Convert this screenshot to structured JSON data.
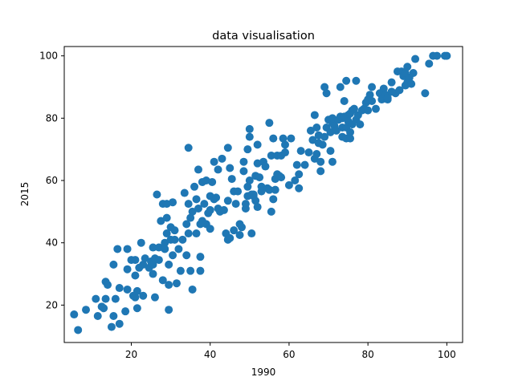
{
  "chart_data": {
    "type": "scatter",
    "title": "data visualisation",
    "xlabel": "1990",
    "ylabel": "2015",
    "xlim": [
      3,
      104
    ],
    "ylim": [
      8,
      103
    ],
    "xticks": [
      20,
      40,
      60,
      80,
      100
    ],
    "yticks": [
      20,
      40,
      60,
      80,
      100
    ],
    "grid": false,
    "marker_color": "#1f77b4",
    "points": [
      [
        5.5,
        17
      ],
      [
        6.5,
        12
      ],
      [
        8.5,
        18.5
      ],
      [
        11,
        22
      ],
      [
        11.5,
        16.5
      ],
      [
        12.5,
        19.5
      ],
      [
        13,
        19
      ],
      [
        13.5,
        22
      ],
      [
        13.5,
        27.5
      ],
      [
        14,
        26.5
      ],
      [
        15,
        13
      ],
      [
        15.5,
        16.5
      ],
      [
        15.5,
        33
      ],
      [
        16,
        22
      ],
      [
        16.5,
        38
      ],
      [
        17,
        14
      ],
      [
        17,
        25.5
      ],
      [
        18.5,
        18
      ],
      [
        19,
        25
      ],
      [
        19,
        31.5
      ],
      [
        19,
        38
      ],
      [
        20,
        34.5
      ],
      [
        20.5,
        23
      ],
      [
        21,
        22.5
      ],
      [
        21,
        29.5
      ],
      [
        21,
        34.5
      ],
      [
        21.5,
        19
      ],
      [
        21.5,
        24.5
      ],
      [
        22,
        32
      ],
      [
        22.5,
        40
      ],
      [
        23,
        33
      ],
      [
        23,
        23
      ],
      [
        23.5,
        35
      ],
      [
        24.5,
        32
      ],
      [
        25,
        34
      ],
      [
        25.5,
        30
      ],
      [
        25.5,
        33
      ],
      [
        25.5,
        38.5
      ],
      [
        26,
        35
      ],
      [
        26.5,
        55.5
      ],
      [
        26,
        22.5
      ],
      [
        27,
        38.5
      ],
      [
        27.5,
        47
      ],
      [
        28,
        28
      ],
      [
        28,
        52.5
      ],
      [
        28.5,
        40
      ],
      [
        28.5,
        38
      ],
      [
        29,
        43
      ],
      [
        29,
        48
      ],
      [
        29,
        52.5
      ],
      [
        29.5,
        33
      ],
      [
        29.5,
        18.5
      ],
      [
        29.5,
        26.5
      ],
      [
        30,
        41
      ],
      [
        30,
        45
      ],
      [
        30.5,
        36
      ],
      [
        30.5,
        53
      ],
      [
        31,
        44
      ],
      [
        31,
        41
      ],
      [
        31.5,
        27
      ],
      [
        32,
        38
      ],
      [
        32.5,
        31
      ],
      [
        33,
        41
      ],
      [
        33.5,
        56
      ],
      [
        34,
        36
      ],
      [
        34,
        46
      ],
      [
        34.5,
        52.5
      ],
      [
        34.5,
        43
      ],
      [
        34.5,
        70.5
      ],
      [
        35,
        31
      ],
      [
        35,
        48
      ],
      [
        35.5,
        50
      ],
      [
        35.5,
        25
      ],
      [
        36,
        58
      ],
      [
        36.5,
        54
      ],
      [
        37,
        51
      ],
      [
        37,
        63.5
      ],
      [
        37.5,
        46
      ],
      [
        37.5,
        35.5
      ],
      [
        37.5,
        31
      ],
      [
        38,
        59.5
      ],
      [
        38,
        47
      ],
      [
        38.5,
        52.5
      ],
      [
        39,
        46
      ],
      [
        39,
        60
      ],
      [
        39.5,
        49.5
      ],
      [
        40,
        44.5
      ],
      [
        40,
        55
      ],
      [
        40,
        50.5
      ],
      [
        40.5,
        59.5
      ],
      [
        41,
        54
      ],
      [
        41,
        66
      ],
      [
        41.5,
        54.5
      ],
      [
        42,
        51
      ],
      [
        42,
        63.5
      ],
      [
        42.5,
        50
      ],
      [
        43,
        67
      ],
      [
        43.5,
        50.5
      ],
      [
        44,
        43
      ],
      [
        44.5,
        53.5
      ],
      [
        44.5,
        70.5
      ],
      [
        44.5,
        41
      ],
      [
        45,
        64
      ],
      [
        45,
        41.5
      ],
      [
        45.5,
        60.5
      ],
      [
        46,
        56.5
      ],
      [
        46.5,
        52.5
      ],
      [
        47,
        56.5
      ],
      [
        47.5,
        42.5
      ],
      [
        47.5,
        46
      ],
      [
        48,
        45
      ],
      [
        48.5,
        63
      ],
      [
        48.5,
        66
      ],
      [
        49,
        51
      ],
      [
        49,
        52.5
      ],
      [
        49.5,
        55
      ],
      [
        49.5,
        58
      ],
      [
        49.5,
        70
      ],
      [
        50,
        76.5
      ],
      [
        50,
        74
      ],
      [
        50,
        60
      ],
      [
        50.5,
        55.5
      ],
      [
        50.5,
        43
      ],
      [
        51,
        55
      ],
      [
        51,
        55.5
      ],
      [
        51.5,
        53.5
      ],
      [
        51.5,
        61.5
      ],
      [
        52,
        71.5
      ],
      [
        52,
        65.5
      ],
      [
        52,
        51.5
      ],
      [
        52.5,
        61
      ],
      [
        53,
        56.5
      ],
      [
        53,
        58
      ],
      [
        53.5,
        66
      ],
      [
        54,
        64.5
      ],
      [
        54.5,
        57.5
      ],
      [
        55,
        78.5
      ],
      [
        55,
        57
      ],
      [
        55.5,
        50
      ],
      [
        55.5,
        68
      ],
      [
        56,
        73.5
      ],
      [
        56,
        54
      ],
      [
        56.5,
        57
      ],
      [
        56.5,
        60.5
      ],
      [
        57,
        68
      ],
      [
        57,
        62
      ],
      [
        57.5,
        61.5
      ],
      [
        58,
        68
      ],
      [
        58,
        61
      ],
      [
        58.5,
        73.5
      ],
      [
        59,
        69
      ],
      [
        60,
        58.5
      ],
      [
        60.5,
        73.5
      ],
      [
        61.5,
        60
      ],
      [
        62,
        65
      ],
      [
        62.5,
        62
      ],
      [
        62.5,
        57.5
      ],
      [
        63,
        69.5
      ],
      [
        64,
        65
      ],
      [
        65,
        69
      ],
      [
        65.5,
        76
      ],
      [
        66,
        73
      ],
      [
        66.5,
        81
      ],
      [
        66.5,
        67
      ],
      [
        67,
        68.5
      ],
      [
        67,
        77
      ],
      [
        67.5,
        72
      ],
      [
        67.5,
        74.5
      ],
      [
        68,
        63
      ],
      [
        68,
        66
      ],
      [
        68.5,
        71.5
      ],
      [
        69,
        90
      ],
      [
        69,
        74
      ],
      [
        69.5,
        88
      ],
      [
        69.5,
        77
      ],
      [
        70,
        79.5
      ],
      [
        70.5,
        69.5
      ],
      [
        70.5,
        75.5
      ],
      [
        71,
        78.5
      ],
      [
        71,
        66
      ],
      [
        71,
        80
      ],
      [
        71.5,
        77.5
      ],
      [
        72,
        76
      ],
      [
        72.5,
        79.5
      ],
      [
        73,
        80.5
      ],
      [
        73,
        90
      ],
      [
        73.5,
        77
      ],
      [
        73.5,
        80
      ],
      [
        73.5,
        74
      ],
      [
        74,
        85.5
      ],
      [
        74,
        80.5
      ],
      [
        74.5,
        73.5
      ],
      [
        74.5,
        92
      ],
      [
        74.5,
        77
      ],
      [
        75,
        81
      ],
      [
        75,
        79
      ],
      [
        75.5,
        75.5
      ],
      [
        75.5,
        81.5
      ],
      [
        75.5,
        73.5
      ],
      [
        76,
        78
      ],
      [
        76,
        82.5
      ],
      [
        76.5,
        83
      ],
      [
        77,
        92
      ],
      [
        77,
        79.5
      ],
      [
        77.5,
        81
      ],
      [
        78,
        78
      ],
      [
        78.5,
        82.5
      ],
      [
        79,
        83
      ],
      [
        79.5,
        85
      ],
      [
        80,
        82.5
      ],
      [
        80,
        86
      ],
      [
        80.5,
        87.5
      ],
      [
        81,
        85.5
      ],
      [
        81,
        90
      ],
      [
        82,
        83
      ],
      [
        83,
        88
      ],
      [
        83.5,
        86
      ],
      [
        84,
        89.5
      ],
      [
        84.5,
        87.5
      ],
      [
        85,
        86
      ],
      [
        85,
        86.5
      ],
      [
        86,
        91.5
      ],
      [
        87,
        88
      ],
      [
        87.5,
        95
      ],
      [
        88,
        89
      ],
      [
        88.5,
        95
      ],
      [
        89,
        93.5
      ],
      [
        89.5,
        90.5
      ],
      [
        89.5,
        94.5
      ],
      [
        90,
        91.5
      ],
      [
        90,
        96.5
      ],
      [
        90.5,
        93
      ],
      [
        91.5,
        94.5
      ],
      [
        92,
        99
      ],
      [
        94.5,
        88
      ],
      [
        95.5,
        97.5
      ],
      [
        96.5,
        100
      ],
      [
        97.5,
        100
      ],
      [
        99.5,
        100
      ],
      [
        100,
        100
      ],
      [
        91,
        91
      ],
      [
        86,
        88.5
      ],
      [
        59,
        71.5
      ],
      [
        36.5,
        43
      ],
      [
        46,
        44
      ],
      [
        27,
        34.5
      ]
    ]
  }
}
